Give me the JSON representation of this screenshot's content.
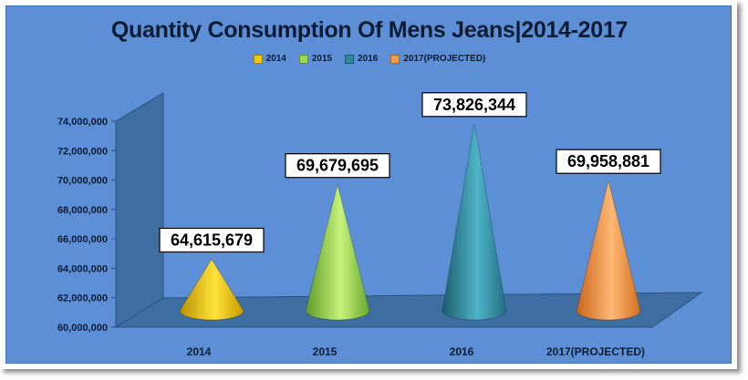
{
  "chart_data": {
    "type": "bar",
    "title": "Quantity Consumption Of Mens Jeans|2014-2017",
    "categories": [
      "2014",
      "2015",
      "2016",
      "2017(PROJECTED)"
    ],
    "values": [
      64615679,
      69679695,
      73826344,
      69958881
    ],
    "value_labels": [
      "64,615,679",
      "69,679,695",
      "73,826,344",
      "69,958,881"
    ],
    "ylim": [
      60000000,
      74000000
    ],
    "y_ticks": [
      "60,000,000",
      "62,000,000",
      "64,000,000",
      "66,000,000",
      "68,000,000",
      "70,000,000",
      "72,000,000",
      "74,000,000"
    ],
    "xlabel": "",
    "ylabel": "",
    "legend": {
      "position": "top",
      "entries": [
        "2014",
        "2015",
        "2016",
        "2017(PROJECTED)"
      ]
    },
    "grid": false,
    "colors": [
      "#f2c80f",
      "#9ad94a",
      "#2f8a9e",
      "#f79a45"
    ]
  }
}
